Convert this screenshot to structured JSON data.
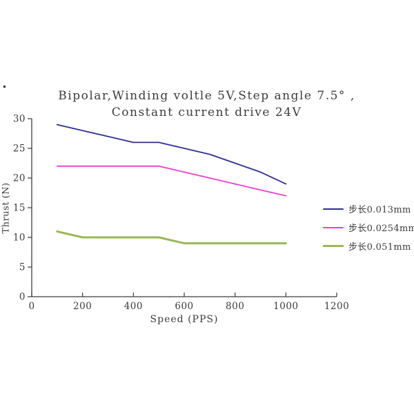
{
  "page": {
    "background": "#ffffff",
    "stray_mark": "."
  },
  "chart_data": {
    "type": "line",
    "title_lines": [
      "Bipolar,Winding voltle 5V,Step angle 7.5° ,",
      "Constant current drive 24V"
    ],
    "xlabel": "Speed (PPS)",
    "ylabel": "Thrust (N)",
    "xlim": [
      0,
      1200
    ],
    "ylim": [
      0,
      30
    ],
    "xticks": [
      0,
      200,
      400,
      600,
      800,
      1000,
      1200
    ],
    "yticks": [
      0,
      5,
      10,
      15,
      20,
      25,
      30
    ],
    "grid": false,
    "legend_position": "right",
    "x": [
      100,
      200,
      300,
      400,
      500,
      600,
      700,
      800,
      900,
      1000
    ],
    "series": [
      {
        "name": "步长0.013mm",
        "color": "#2d2d94",
        "stroke_width": 1.8,
        "values": [
          29,
          28,
          27,
          26,
          26,
          25,
          24,
          22.5,
          21,
          19
        ]
      },
      {
        "name": "步长0.0254mm",
        "color": "#ee3cd2",
        "stroke_width": 1.8,
        "values": [
          22,
          22,
          22,
          22,
          22,
          21,
          20,
          19,
          18,
          17
        ]
      },
      {
        "name": "步长0.051mm",
        "color": "#9ab852",
        "stroke_width": 3,
        "values": [
          11,
          10,
          10,
          10,
          10,
          9,
          9,
          9,
          9,
          9
        ]
      }
    ],
    "axis_color": "#3a3a3a"
  }
}
